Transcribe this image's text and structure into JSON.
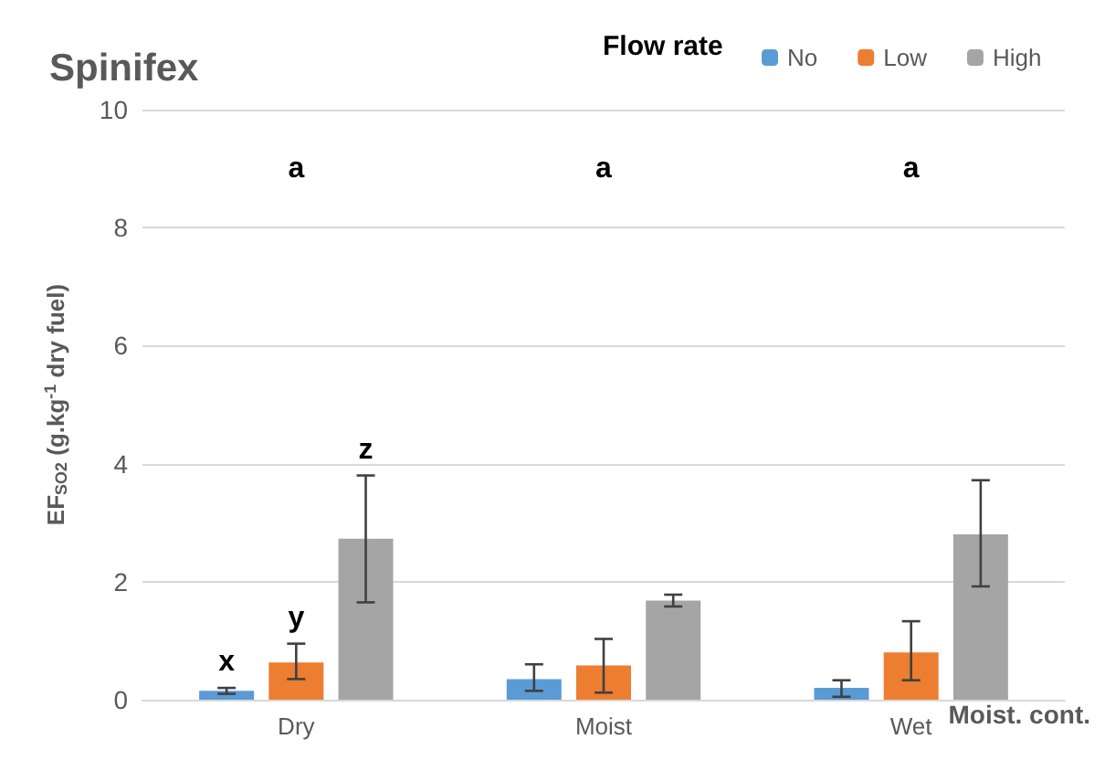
{
  "chart_data": {
    "type": "bar",
    "title": "Spinifex",
    "xlabel": "Moist. cont.",
    "ylabel": "EF$_{SO2}$ (g.kg$^{-1}$ dry fuel)",
    "legend_title": "Flow rate",
    "categories": [
      "Dry",
      "Moist",
      "Wet"
    ],
    "series": [
      {
        "name": "No",
        "color": "#5b9bd5",
        "values": [
          0.15,
          0.35,
          0.2
        ],
        "errors": [
          0.05,
          [
            0.15,
            0.6
          ],
          [
            0.05,
            0.33
          ]
        ]
      },
      {
        "name": "Low",
        "color": "#ed7d31",
        "values": [
          0.63,
          0.58,
          0.8
        ],
        "errors": [
          [
            0.35,
            0.95
          ],
          [
            0.12,
            1.03
          ],
          [
            0.33,
            1.33
          ]
        ]
      },
      {
        "name": "High",
        "color": "#a5a5a5",
        "values": [
          2.73,
          1.68,
          2.8
        ],
        "errors": [
          [
            1.65,
            3.8
          ],
          [
            1.58,
            1.78
          ],
          [
            1.92,
            3.72
          ]
        ]
      }
    ],
    "annotations": [
      "a",
      "a",
      "a",
      "x",
      "y",
      "z"
    ],
    "ylim": [
      0,
      10
    ],
    "yticks": [
      0,
      2,
      4,
      6,
      8,
      10
    ],
    "grid": "y",
    "legend": "top right"
  }
}
